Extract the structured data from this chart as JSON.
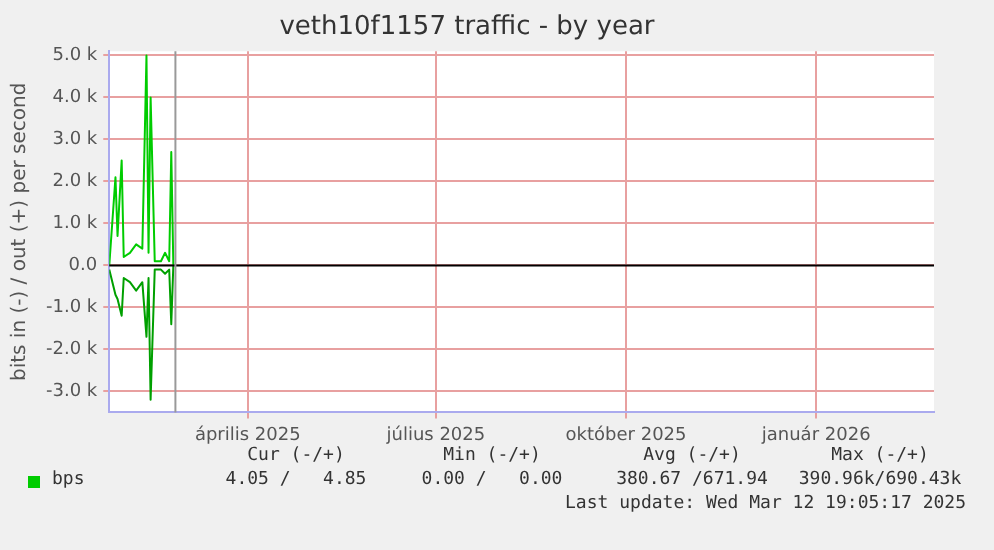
{
  "chart_data": {
    "type": "line",
    "title": "veth10f1157 traffic - by year",
    "ylabel": "bits in (-) / out (+) per second",
    "x": [
      "2025-01-24",
      "2025-01-27",
      "2025-01-28",
      "2025-01-30",
      "2025-01-31",
      "2025-02-03",
      "2025-02-06",
      "2025-02-09",
      "2025-02-11",
      "2025-02-12",
      "2025-02-13",
      "2025-02-15",
      "2025-02-18",
      "2025-02-20",
      "2025-02-22",
      "2025-02-23",
      "2025-02-24"
    ],
    "series": [
      {
        "name": "bps",
        "color": "#00cc00",
        "values": [
          0,
          2100,
          700,
          2500,
          200,
          300,
          500,
          400,
          5000,
          300,
          4000,
          100,
          100,
          300,
          100,
          2700,
          0
        ]
      },
      {
        "color": "#00a000",
        "values": [
          -100,
          -700,
          -800,
          -1200,
          -300,
          -400,
          -600,
          -400,
          -1700,
          -300,
          -3200,
          -100,
          -100,
          -200,
          -100,
          -1400,
          0
        ]
      }
    ],
    "xlim": [
      "2025-01-24",
      "2026-02-27"
    ],
    "xticks": [
      {
        "value": "2025-04-01",
        "label": "április 2025"
      },
      {
        "value": "2025-07-01",
        "label": "július 2025"
      },
      {
        "value": "2025-10-01",
        "label": "október 2025"
      },
      {
        "value": "2026-01-01",
        "label": "január 2026"
      }
    ],
    "ylim": [
      -3500,
      5100
    ],
    "yticks": [
      {
        "value": -3000,
        "label": "-3.0 k"
      },
      {
        "value": -2000,
        "label": "-2.0 k"
      },
      {
        "value": -1000,
        "label": "-1.0 k"
      },
      {
        "value": 0,
        "label": "0.0"
      },
      {
        "value": 1000,
        "label": "1.0 k"
      },
      {
        "value": 2000,
        "label": "2.0 k"
      },
      {
        "value": 3000,
        "label": "3.0 k"
      },
      {
        "value": 4000,
        "label": "4.0 k"
      },
      {
        "value": 5000,
        "label": "5.0 k"
      }
    ],
    "ref_lines": [
      {
        "axis": "y",
        "value": 0,
        "color": "#000000"
      },
      {
        "axis": "x",
        "value": "2025-02-25",
        "color": "#999999"
      }
    ],
    "grid": true,
    "legend": "bottom",
    "marker": "none",
    "line_style": "solid",
    "annotations": [
      "Cur (-/+)",
      "Min (-/+)",
      "Avg (-/+)",
      "Max (-/+)",
      "4.05 /   4.85",
      "0.00 /   0.00",
      "380.67 /671.94",
      "390.96k/690.43k",
      "Last update: Wed Mar 12 19:05:17 2025"
    ]
  }
}
